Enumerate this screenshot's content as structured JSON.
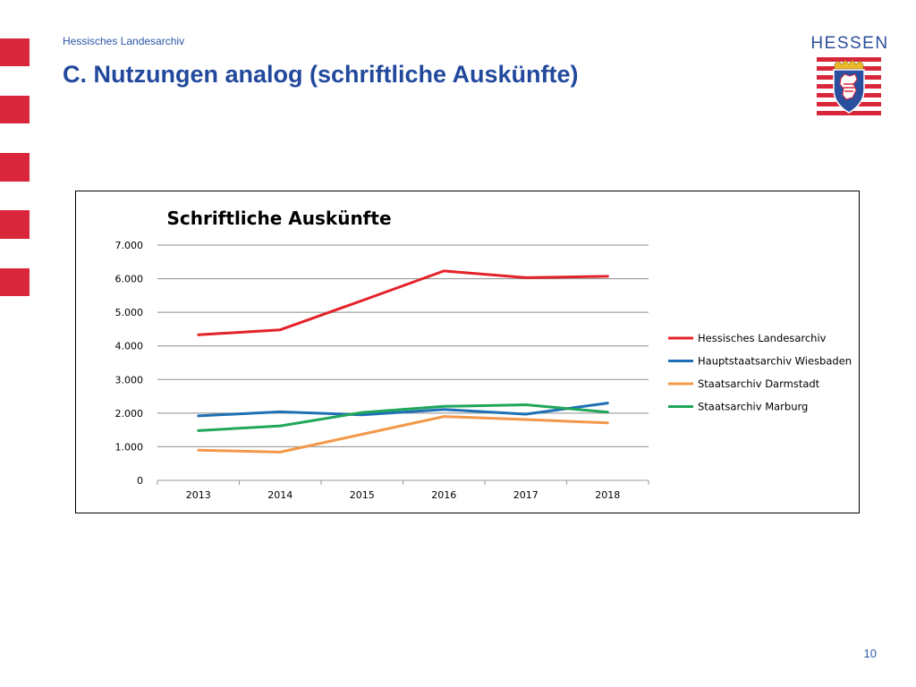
{
  "header": {
    "org_name": "Hessisches Landesarchiv",
    "title": "C. Nutzungen analog (schriftliche Auskünfte)"
  },
  "logo": {
    "text": "HESSEN"
  },
  "footer": {
    "page_number": "10"
  },
  "colors": {
    "brand_red": "#d9263a",
    "title_blue": "#22499c"
  },
  "chart_data": {
    "type": "line",
    "title": "Schriftliche Auskünfte",
    "xlabel": "",
    "ylabel": "",
    "categories": [
      "2013",
      "2014",
      "2015",
      "2016",
      "2017",
      "2018"
    ],
    "y_ticks": [
      "0",
      "1.000",
      "2.000",
      "3.000",
      "4.000",
      "5.000",
      "6.000",
      "7.000"
    ],
    "ylim": [
      0,
      7000
    ],
    "grid": true,
    "legend_position": "right",
    "series": [
      {
        "name": "Hessisches Landesarchiv",
        "color": "#e32229",
        "values": [
          4330,
          4480,
          5350,
          6230,
          6030,
          6070
        ]
      },
      {
        "name": "Hauptstaatsarchiv Wiesbaden",
        "color": "#1f6fb5",
        "values": [
          1920,
          2040,
          1950,
          2110,
          1970,
          2300
        ]
      },
      {
        "name": "Staatsarchiv Darmstadt",
        "color": "#f39849",
        "values": [
          900,
          840,
          1370,
          1900,
          1810,
          1710
        ]
      },
      {
        "name": "Staatsarchiv Marburg",
        "color": "#1fa65a",
        "values": [
          1480,
          1620,
          2020,
          2200,
          2250,
          2030
        ]
      }
    ]
  }
}
